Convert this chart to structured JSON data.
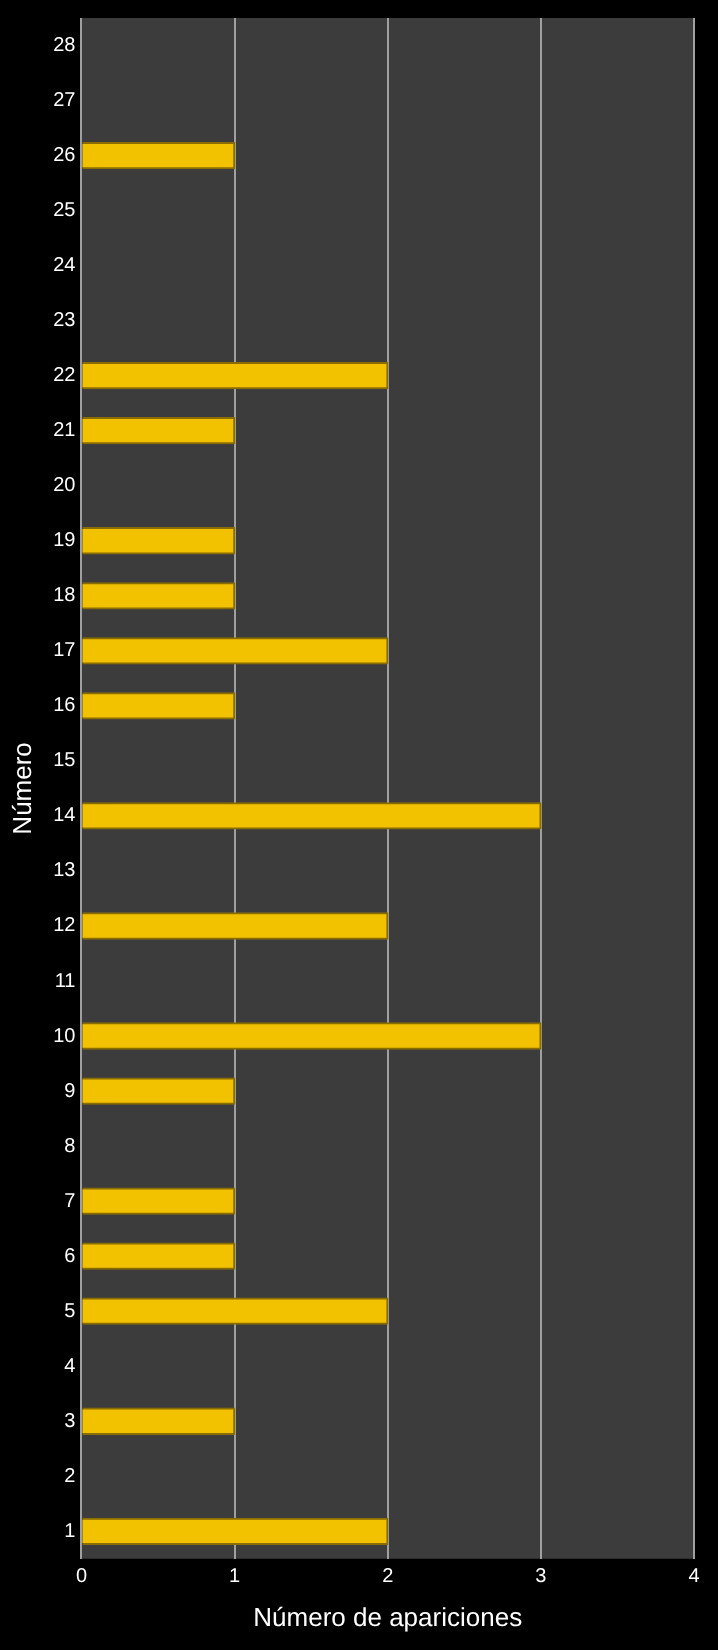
{
  "chart_data": {
    "type": "bar",
    "orientation": "horizontal",
    "xlabel": "Número de apariciones",
    "ylabel": "Número",
    "categories": [
      "28",
      "27",
      "26",
      "25",
      "24",
      "23",
      "22",
      "21",
      "20",
      "19",
      "18",
      "17",
      "16",
      "15",
      "14",
      "13",
      "12",
      "11",
      "10",
      "9",
      "8",
      "7",
      "6",
      "5",
      "4",
      "3",
      "2",
      "1"
    ],
    "values": [
      0,
      0,
      1,
      0,
      0,
      0,
      2,
      1,
      0,
      1,
      1,
      2,
      1,
      0,
      3,
      0,
      2,
      0,
      3,
      1,
      0,
      1,
      1,
      2,
      0,
      1,
      0,
      2
    ],
    "color": "#f2c200",
    "xlim": [
      0,
      4
    ],
    "xticks": [
      0,
      1,
      2,
      3,
      4
    ],
    "grid": "x",
    "legend": false
  }
}
